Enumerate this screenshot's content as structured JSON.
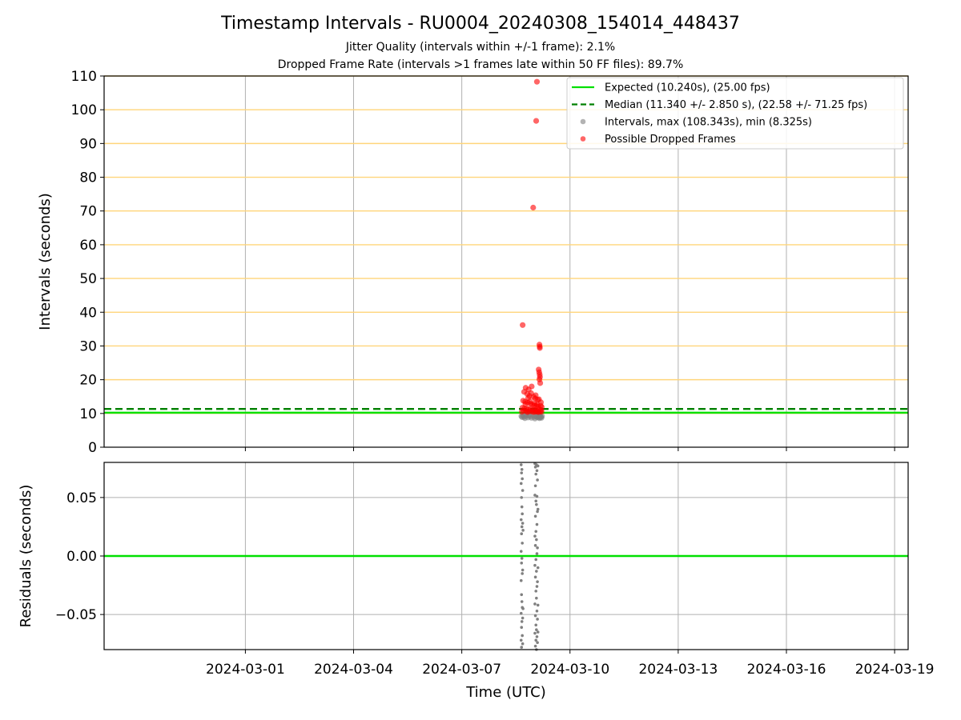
{
  "chart_data": [
    {
      "type": "scatter",
      "title": "Timestamp Intervals - RU0004_20240308_154014_448437",
      "subtitle_lines": [
        "Jitter Quality (intervals within +/-1 frame): 2.1%",
        "Dropped Frame Rate (intervals >1 frames late within 50 FF files): 89.7%"
      ],
      "xlabel": "",
      "ylabel": "Intervals (seconds)",
      "ylim": [
        0,
        110
      ],
      "xlim": [
        "2024-02-26T02:00",
        "2024-03-19T09:00"
      ],
      "yticks": [
        0,
        10,
        20,
        30,
        40,
        50,
        60,
        70,
        80,
        90,
        100,
        110
      ],
      "grid": true,
      "horizontal_bands": [
        10,
        20,
        30,
        40,
        50,
        60,
        70,
        80,
        90,
        100,
        110
      ],
      "band_color": "#ffd57a",
      "reference_lines": [
        {
          "name": "Expected (10.240s), (25.00 fps)",
          "y": 10.24,
          "style": "solid",
          "color": "#00e000"
        },
        {
          "name": "Median (11.340 +/- 2.850 s), (22.58 +/- 71.25 fps)",
          "y": 11.34,
          "style": "dashed",
          "color": "#008000"
        }
      ],
      "series": [
        {
          "name": "Intervals, max (108.343s), min (8.325s)",
          "color": "#808080",
          "points": [
            [
              "2024-03-08T15:40",
              9.2
            ],
            [
              "2024-03-08T16:10",
              8.9
            ],
            [
              "2024-03-08T16:40",
              9.5
            ],
            [
              "2024-03-08T17:20",
              9.0
            ],
            [
              "2024-03-08T18:00",
              8.6
            ],
            [
              "2024-03-08T18:40",
              9.3
            ],
            [
              "2024-03-08T19:20",
              9.8
            ],
            [
              "2024-03-08T20:00",
              8.8
            ],
            [
              "2024-03-08T20:40",
              9.4
            ],
            [
              "2024-03-08T21:30",
              9.1
            ],
            [
              "2024-03-08T22:20",
              8.7
            ],
            [
              "2024-03-08T23:10",
              9.6
            ],
            [
              "2024-03-09T00:00",
              9.0
            ],
            [
              "2024-03-09T00:40",
              8.5
            ],
            [
              "2024-03-09T01:20",
              9.2
            ],
            [
              "2024-03-09T02:00",
              8.9
            ],
            [
              "2024-03-09T02:40",
              9.4
            ],
            [
              "2024-03-09T03:00",
              8.8
            ],
            [
              "2024-03-09T03:20",
              9.1
            ],
            [
              "2024-03-09T03:40",
              8.6
            ],
            [
              "2024-03-09T04:00",
              9.3
            ],
            [
              "2024-03-09T04:20",
              8.9
            ],
            [
              "2024-03-09T04:40",
              9.0
            ],
            [
              "2024-03-09T05:00",
              8.7
            ],
            [
              "2024-03-09T05:20",
              9.2
            ]
          ]
        },
        {
          "name": "Possible Dropped Frames",
          "color": "#ff0000",
          "points": [
            [
              "2024-03-08T16:30",
              36.2
            ],
            [
              "2024-03-08T23:30",
              71.0
            ],
            [
              "2024-03-09T01:30",
              96.7
            ],
            [
              "2024-03-09T02:00",
              108.3
            ],
            [
              "2024-03-09T03:40",
              30.4
            ],
            [
              "2024-03-09T03:50",
              29.8
            ],
            [
              "2024-03-09T03:55",
              29.4
            ],
            [
              "2024-03-09T03:10",
              23.0
            ],
            [
              "2024-03-09T03:30",
              22.2
            ],
            [
              "2024-03-09T03:50",
              21.5
            ],
            [
              "2024-03-09T04:00",
              20.8
            ],
            [
              "2024-03-09T03:40",
              20.1
            ],
            [
              "2024-03-09T04:10",
              19.0
            ],
            [
              "2024-03-08T22:30",
              18.0
            ],
            [
              "2024-03-08T18:30",
              17.6
            ],
            [
              "2024-03-08T20:30",
              17.1
            ],
            [
              "2024-03-08T17:30",
              16.4
            ],
            [
              "2024-03-08T19:30",
              15.8
            ],
            [
              "2024-03-08T21:00",
              15.2
            ],
            [
              "2024-03-08T23:50",
              14.9
            ],
            [
              "2024-03-09T00:50",
              14.4
            ],
            [
              "2024-03-09T02:30",
              14.1
            ],
            [
              "2024-03-08T16:50",
              13.8
            ],
            [
              "2024-03-08T18:10",
              13.5
            ],
            [
              "2024-03-08T19:50",
              13.2
            ],
            [
              "2024-03-08T21:40",
              12.9
            ],
            [
              "2024-03-08T22:50",
              12.6
            ],
            [
              "2024-03-09T00:10",
              12.4
            ],
            [
              "2024-03-09T01:40",
              12.2
            ],
            [
              "2024-03-09T02:50",
              12.0
            ],
            [
              "2024-03-09T04:30",
              12.3
            ],
            [
              "2024-03-09T05:10",
              11.9
            ],
            [
              "2024-03-08T16:20",
              11.7
            ],
            [
              "2024-03-08T17:40",
              11.5
            ],
            [
              "2024-03-08T19:10",
              11.4
            ],
            [
              "2024-03-08T20:20",
              11.3
            ],
            [
              "2024-03-08T21:50",
              11.2
            ],
            [
              "2024-03-08T23:20",
              11.1
            ],
            [
              "2024-03-09T00:30",
              11.0
            ],
            [
              "2024-03-09T01:50",
              10.9
            ],
            [
              "2024-03-09T03:30",
              11.2
            ],
            [
              "2024-03-09T04:50",
              11.0
            ],
            [
              "2024-03-08T17:00",
              10.8
            ],
            [
              "2024-03-08T18:50",
              10.7
            ],
            [
              "2024-03-08T20:50",
              10.6
            ],
            [
              "2024-03-08T22:40",
              10.6
            ],
            [
              "2024-03-09T01:00",
              10.5
            ],
            [
              "2024-03-09T02:20",
              10.5
            ],
            [
              "2024-03-09T04:10",
              10.6
            ],
            [
              "2024-03-08T16:00",
              10.5
            ],
            [
              "2024-03-08T19:40",
              10.4
            ],
            [
              "2024-03-08T23:40",
              10.4
            ],
            [
              "2024-03-09T03:00",
              10.4
            ],
            [
              "2024-03-09T05:00",
              10.5
            ],
            [
              "2024-03-08T18:20",
              12.8
            ],
            [
              "2024-03-08T21:20",
              13.6
            ],
            [
              "2024-03-09T00:20",
              13.0
            ],
            [
              "2024-03-09T02:10",
              12.7
            ],
            [
              "2024-03-09T04:40",
              13.3
            ],
            [
              "2024-03-08T20:10",
              14.6
            ],
            [
              "2024-03-08T22:10",
              16.0
            ],
            [
              "2024-03-09T01:10",
              15.4
            ],
            [
              "2024-03-09T03:20",
              14.2
            ]
          ]
        }
      ],
      "legend": "top-right"
    },
    {
      "type": "scatter",
      "title": "",
      "xlabel": "Time (UTC)",
      "ylabel": "Residuals (seconds)",
      "ylim": [
        -0.08,
        0.08
      ],
      "xlim": [
        "2024-02-26T02:00",
        "2024-03-19T09:00"
      ],
      "yticks": [
        -0.05,
        0.0,
        0.05
      ],
      "ytick_labels": [
        "−0.05",
        "0.00",
        "0.05"
      ],
      "xtick_dates": [
        "2024-03-01",
        "2024-03-04",
        "2024-03-07",
        "2024-03-10",
        "2024-03-13",
        "2024-03-16",
        "2024-03-19"
      ],
      "grid": true,
      "reference_lines": [
        {
          "y": 0.0,
          "style": "solid",
          "color": "#00e000"
        }
      ],
      "series": [
        {
          "color": "#808080",
          "points": [
            [
              "2024-03-08T15:30",
              0.078
            ],
            [
              "2024-03-08T15:30",
              0.062
            ],
            [
              "2024-03-08T15:30",
              0.031
            ],
            [
              "2024-03-08T15:30",
              0.004
            ],
            [
              "2024-03-08T15:30",
              -0.021
            ],
            [
              "2024-03-08T15:30",
              -0.049
            ],
            [
              "2024-03-08T15:30",
              -0.072
            ],
            [
              "2024-03-08T15:45",
              0.071
            ],
            [
              "2024-03-08T15:45",
              0.05
            ],
            [
              "2024-03-08T15:45",
              0.019
            ],
            [
              "2024-03-08T15:45",
              -0.006
            ],
            [
              "2024-03-08T15:45",
              -0.033
            ],
            [
              "2024-03-08T15:45",
              -0.061
            ],
            [
              "2024-03-08T15:45",
              -0.078
            ],
            [
              "2024-03-08T16:00",
              0.074
            ],
            [
              "2024-03-08T16:00",
              0.042
            ],
            [
              "2024-03-08T16:00",
              0.025
            ],
            [
              "2024-03-08T16:00",
              -0.002
            ],
            [
              "2024-03-08T16:00",
              -0.039
            ],
            [
              "2024-03-08T16:00",
              -0.056
            ],
            [
              "2024-03-08T16:15",
              0.066
            ],
            [
              "2024-03-08T16:15",
              0.036
            ],
            [
              "2024-03-08T16:15",
              0.011
            ],
            [
              "2024-03-08T16:15",
              -0.015
            ],
            [
              "2024-03-08T16:15",
              -0.044
            ],
            [
              "2024-03-08T16:15",
              -0.068
            ],
            [
              "2024-03-08T16:30",
              0.056
            ],
            [
              "2024-03-08T16:30",
              0.028
            ],
            [
              "2024-03-08T16:30",
              -0.012
            ],
            [
              "2024-03-08T16:30",
              -0.053
            ],
            [
              "2024-03-08T16:30",
              -0.075
            ],
            [
              "2024-03-08T16:45",
              0.022
            ],
            [
              "2024-03-08T16:45",
              -0.045
            ],
            [
              "2024-03-09T00:40",
              0.079
            ],
            [
              "2024-03-09T00:40",
              0.052
            ],
            [
              "2024-03-09T00:40",
              0.017
            ],
            [
              "2024-03-09T00:40",
              -0.008
            ],
            [
              "2024-03-09T00:40",
              -0.041
            ],
            [
              "2024-03-09T00:40",
              -0.066
            ],
            [
              "2024-03-09T01:00",
              0.076
            ],
            [
              "2024-03-09T01:00",
              0.06
            ],
            [
              "2024-03-09T01:00",
              0.034
            ],
            [
              "2024-03-09T01:00",
              0.009
            ],
            [
              "2024-03-09T01:00",
              -0.018
            ],
            [
              "2024-03-09T01:00",
              -0.051
            ],
            [
              "2024-03-09T01:00",
              -0.077
            ],
            [
              "2024-03-09T01:20",
              0.07
            ],
            [
              "2024-03-09T01:20",
              0.047
            ],
            [
              "2024-03-09T01:20",
              0.021
            ],
            [
              "2024-03-09T01:20",
              -0.003
            ],
            [
              "2024-03-09T01:20",
              -0.03
            ],
            [
              "2024-03-09T01:20",
              -0.059
            ],
            [
              "2024-03-09T01:20",
              -0.072
            ],
            [
              "2024-03-09T01:40",
              0.078
            ],
            [
              "2024-03-09T01:40",
              0.044
            ],
            [
              "2024-03-09T01:40",
              0.014
            ],
            [
              "2024-03-09T01:40",
              -0.013
            ],
            [
              "2024-03-09T01:40",
              -0.036
            ],
            [
              "2024-03-09T01:40",
              -0.063
            ],
            [
              "2024-03-09T01:40",
              -0.08
            ],
            [
              "2024-03-09T02:00",
              0.073
            ],
            [
              "2024-03-09T02:00",
              0.051
            ],
            [
              "2024-03-09T02:00",
              0.027
            ],
            [
              "2024-03-09T02:00",
              0.002
            ],
            [
              "2024-03-09T02:00",
              -0.026
            ],
            [
              "2024-03-09T02:00",
              -0.047
            ],
            [
              "2024-03-09T02:00",
              -0.069
            ],
            [
              "2024-03-09T02:20",
              0.065
            ],
            [
              "2024-03-09T02:20",
              0.038
            ],
            [
              "2024-03-09T02:20",
              0.007
            ],
            [
              "2024-03-09T02:20",
              -0.022
            ],
            [
              "2024-03-09T02:20",
              -0.054
            ],
            [
              "2024-03-09T02:20",
              -0.074
            ],
            [
              "2024-03-09T02:40",
              0.077
            ],
            [
              "2024-03-09T02:40",
              0.04
            ],
            [
              "2024-03-09T02:40",
              -0.01
            ],
            [
              "2024-03-09T02:40",
              -0.042
            ],
            [
              "2024-03-09T02:40",
              -0.065
            ]
          ]
        }
      ]
    }
  ]
}
